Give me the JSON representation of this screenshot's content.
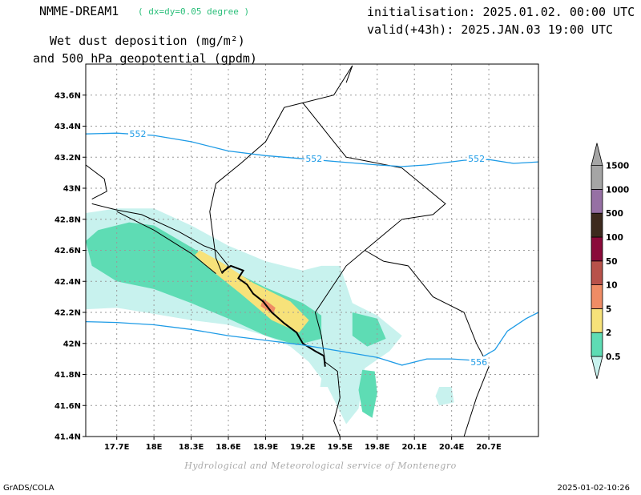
{
  "header": {
    "model_name": "NMME-DREAM1",
    "model_resolution": "( dx=dy=0.05 degree )",
    "initialisation": "initialisation: 2025.01.02. 00:00 UTC",
    "valid": "valid(+43h): 2025.JAN.03 19:00 UTC",
    "title_line1": "Wet dust deposition (mg/m²)",
    "title_line2": "and 500 hPa geopotential (gpdm)"
  },
  "footer": {
    "credit": "Hydrological and Meteorological service of Montenegro",
    "software": "GrADS/COLA",
    "timestamp": "2025-01-02-10:26"
  },
  "map": {
    "lon_range": [
      17.45,
      21.1
    ],
    "lat_range": [
      41.4,
      43.8
    ],
    "lon_ticks": [
      17.7,
      18.0,
      18.3,
      18.6,
      18.9,
      19.2,
      19.5,
      19.8,
      20.1,
      20.4,
      20.7
    ],
    "lon_labels": [
      "17.7E",
      "18E",
      "18.3E",
      "18.6E",
      "18.9E",
      "19.2E",
      "19.5E",
      "19.8E",
      "20.1E",
      "20.4E",
      "20.7E"
    ],
    "lat_ticks": [
      41.4,
      41.6,
      41.8,
      42.0,
      42.2,
      42.4,
      42.6,
      42.8,
      43.0,
      43.2,
      43.4,
      43.6
    ],
    "lat_labels": [
      "41.4N",
      "41.6N",
      "41.8N",
      "42N",
      "42.2N",
      "42.4N",
      "42.6N",
      "42.8N",
      "43N",
      "43.2N",
      "43.4N",
      "43.6N"
    ],
    "contour_color": "#1e9be6",
    "contours": [
      {
        "label": "552",
        "label_positions": [
          [
            17.87,
            43.35
          ],
          [
            19.29,
            43.19
          ],
          [
            20.6,
            43.19
          ]
        ],
        "points": [
          [
            17.45,
            43.35
          ],
          [
            17.7,
            43.355
          ],
          [
            18.0,
            43.34
          ],
          [
            18.3,
            43.3
          ],
          [
            18.6,
            43.24
          ],
          [
            18.9,
            43.21
          ],
          [
            19.2,
            43.19
          ],
          [
            19.5,
            43.17
          ],
          [
            19.8,
            43.15
          ],
          [
            20.0,
            43.14
          ],
          [
            20.2,
            43.15
          ],
          [
            20.5,
            43.18
          ],
          [
            20.7,
            43.185
          ],
          [
            20.9,
            43.16
          ],
          [
            21.1,
            43.17
          ]
        ]
      },
      {
        "label": "556",
        "label_positions": [
          [
            20.62,
            41.88
          ]
        ],
        "points": [
          [
            17.45,
            42.14
          ],
          [
            17.7,
            42.135
          ],
          [
            18.0,
            42.12
          ],
          [
            18.3,
            42.09
          ],
          [
            18.6,
            42.05
          ],
          [
            18.9,
            42.02
          ],
          [
            19.2,
            41.99
          ],
          [
            19.5,
            41.95
          ],
          [
            19.8,
            41.91
          ],
          [
            20.0,
            41.86
          ],
          [
            20.2,
            41.9
          ],
          [
            20.4,
            41.9
          ],
          [
            20.6,
            41.89
          ],
          [
            20.75,
            41.96
          ],
          [
            20.85,
            42.08
          ],
          [
            21.0,
            42.16
          ],
          [
            21.1,
            42.2
          ]
        ]
      }
    ],
    "dust_shading": [
      {
        "level": "0.5",
        "color": "#c8f2ee",
        "points": [
          [
            17.45,
            42.84
          ],
          [
            17.7,
            42.87
          ],
          [
            18.0,
            42.87
          ],
          [
            18.3,
            42.76
          ],
          [
            18.6,
            42.63
          ],
          [
            18.9,
            42.53
          ],
          [
            19.2,
            42.47
          ],
          [
            19.35,
            42.5
          ],
          [
            19.5,
            42.5
          ],
          [
            19.6,
            42.26
          ],
          [
            19.8,
            42.18
          ],
          [
            20.0,
            42.05
          ],
          [
            19.9,
            41.95
          ],
          [
            19.7,
            41.84
          ],
          [
            19.65,
            41.58
          ],
          [
            19.55,
            41.48
          ],
          [
            19.4,
            41.72
          ],
          [
            19.25,
            41.88
          ],
          [
            19.1,
            41.98
          ],
          [
            18.9,
            42.05
          ],
          [
            18.6,
            42.12
          ],
          [
            18.3,
            42.15
          ],
          [
            18.0,
            42.19
          ],
          [
            17.7,
            42.23
          ],
          [
            17.45,
            42.22
          ]
        ]
      },
      {
        "level": "0.5",
        "color": "#c8f2ee",
        "points": [
          [
            20.3,
            41.72
          ],
          [
            20.4,
            41.72
          ],
          [
            20.42,
            41.62
          ],
          [
            20.3,
            41.6
          ],
          [
            20.27,
            41.66
          ]
        ]
      },
      {
        "level": "0.5",
        "color": "#c8f2ee",
        "points": [
          [
            19.35,
            41.77
          ],
          [
            19.42,
            41.78
          ],
          [
            19.42,
            41.72
          ],
          [
            19.34,
            41.72
          ]
        ]
      },
      {
        "level": "2",
        "color": "#5edcb4",
        "points": [
          [
            17.45,
            42.66
          ],
          [
            17.55,
            42.73
          ],
          [
            17.8,
            42.78
          ],
          [
            18.0,
            42.76
          ],
          [
            18.3,
            42.62
          ],
          [
            18.6,
            42.48
          ],
          [
            18.9,
            42.36
          ],
          [
            19.2,
            42.26
          ],
          [
            19.35,
            42.18
          ],
          [
            19.35,
            42.03
          ],
          [
            19.15,
            41.99
          ],
          [
            18.9,
            42.05
          ],
          [
            18.6,
            42.16
          ],
          [
            18.3,
            42.26
          ],
          [
            18.0,
            42.35
          ],
          [
            17.7,
            42.4
          ],
          [
            17.5,
            42.5
          ]
        ]
      },
      {
        "level": "2",
        "color": "#5edcb4",
        "points": [
          [
            19.6,
            42.2
          ],
          [
            19.8,
            42.16
          ],
          [
            19.87,
            42.03
          ],
          [
            19.72,
            41.98
          ],
          [
            19.6,
            42.05
          ]
        ]
      },
      {
        "level": "2",
        "color": "#5edcb4",
        "points": [
          [
            19.68,
            41.83
          ],
          [
            19.78,
            41.82
          ],
          [
            19.8,
            41.68
          ],
          [
            19.76,
            41.52
          ],
          [
            19.68,
            41.56
          ],
          [
            19.65,
            41.7
          ]
        ]
      },
      {
        "level": "5",
        "color": "#f7e27a",
        "points": [
          [
            18.37,
            42.6
          ],
          [
            18.55,
            42.52
          ],
          [
            18.8,
            42.39
          ],
          [
            19.1,
            42.27
          ],
          [
            19.25,
            42.15
          ],
          [
            19.17,
            42.07
          ],
          [
            18.95,
            42.15
          ],
          [
            18.7,
            42.32
          ],
          [
            18.45,
            42.48
          ],
          [
            18.33,
            42.57
          ]
        ]
      },
      {
        "level": "10",
        "color": "#ef8c65",
        "points": [
          [
            18.88,
            42.29
          ],
          [
            18.98,
            42.23
          ],
          [
            18.96,
            42.19
          ],
          [
            18.86,
            42.24
          ]
        ]
      }
    ],
    "borders": [
      [
        [
          17.45,
          43.15
        ],
        [
          17.6,
          43.06
        ],
        [
          17.62,
          42.98
        ],
        [
          17.5,
          42.93
        ]
      ],
      [
        [
          17.5,
          42.9
        ],
        [
          17.7,
          42.86
        ],
        [
          17.9,
          42.83
        ],
        [
          18.2,
          42.72
        ],
        [
          18.4,
          42.63
        ],
        [
          18.5,
          42.6
        ],
        [
          18.6,
          42.5
        ],
        [
          18.55,
          42.45
        ]
      ],
      [
        [
          18.55,
          42.45
        ],
        [
          18.5,
          42.55
        ],
        [
          18.45,
          42.85
        ],
        [
          18.5,
          43.03
        ],
        [
          18.7,
          43.16
        ],
        [
          18.9,
          43.3
        ],
        [
          19.05,
          43.52
        ],
        [
          19.2,
          43.55
        ],
        [
          19.45,
          43.6
        ],
        [
          19.6,
          43.79
        ]
      ],
      [
        [
          19.6,
          43.79
        ],
        [
          19.55,
          43.68
        ]
      ],
      [
        [
          19.2,
          43.55
        ],
        [
          19.3,
          43.45
        ],
        [
          19.45,
          43.3
        ],
        [
          19.55,
          43.2
        ],
        [
          19.75,
          43.17
        ],
        [
          20.0,
          43.13
        ],
        [
          20.35,
          42.9
        ],
        [
          20.25,
          42.83
        ],
        [
          20.0,
          42.8
        ],
        [
          19.85,
          42.7
        ],
        [
          19.7,
          42.6
        ],
        [
          19.55,
          42.5
        ],
        [
          19.3,
          42.2
        ],
        [
          19.35,
          42.05
        ],
        [
          19.38,
          41.88
        ]
      ],
      [
        [
          19.7,
          42.6
        ],
        [
          19.85,
          42.53
        ]
      ],
      [
        [
          19.85,
          42.53
        ],
        [
          20.05,
          42.5
        ],
        [
          20.25,
          42.3
        ],
        [
          20.5,
          42.2
        ],
        [
          20.6,
          42.0
        ],
        [
          20.7,
          41.85
        ],
        [
          20.6,
          41.65
        ],
        [
          20.5,
          41.4
        ]
      ],
      [
        [
          19.38,
          41.88
        ],
        [
          19.48,
          41.82
        ],
        [
          19.5,
          41.65
        ],
        [
          19.45,
          41.5
        ],
        [
          19.5,
          41.4
        ]
      ],
      [
        [
          17.7,
          42.85
        ],
        [
          18.0,
          42.73
        ],
        [
          18.3,
          42.58
        ],
        [
          18.5,
          42.45
        ]
      ]
    ],
    "coastline": [
      [
        18.55,
        42.46
      ],
      [
        18.62,
        42.5
      ],
      [
        18.72,
        42.47
      ],
      [
        18.68,
        42.42
      ],
      [
        18.75,
        42.38
      ],
      [
        18.8,
        42.32
      ],
      [
        18.88,
        42.27
      ],
      [
        18.95,
        42.2
      ],
      [
        19.05,
        42.13
      ],
      [
        19.15,
        42.07
      ],
      [
        19.2,
        42.0
      ],
      [
        19.3,
        41.95
      ],
      [
        19.37,
        41.92
      ],
      [
        19.38,
        41.85
      ]
    ],
    "legend": {
      "labels": [
        "0.5",
        "2",
        "5",
        "10",
        "50",
        "100",
        "500",
        "1000",
        "1500"
      ],
      "colors": [
        "#c8f2ee",
        "#5edcb4",
        "#f7e27a",
        "#ef8c65",
        "#b8524a",
        "#8a0a3a",
        "#3d2a1e",
        "#9670a4",
        "#a5a5a5"
      ]
    }
  }
}
